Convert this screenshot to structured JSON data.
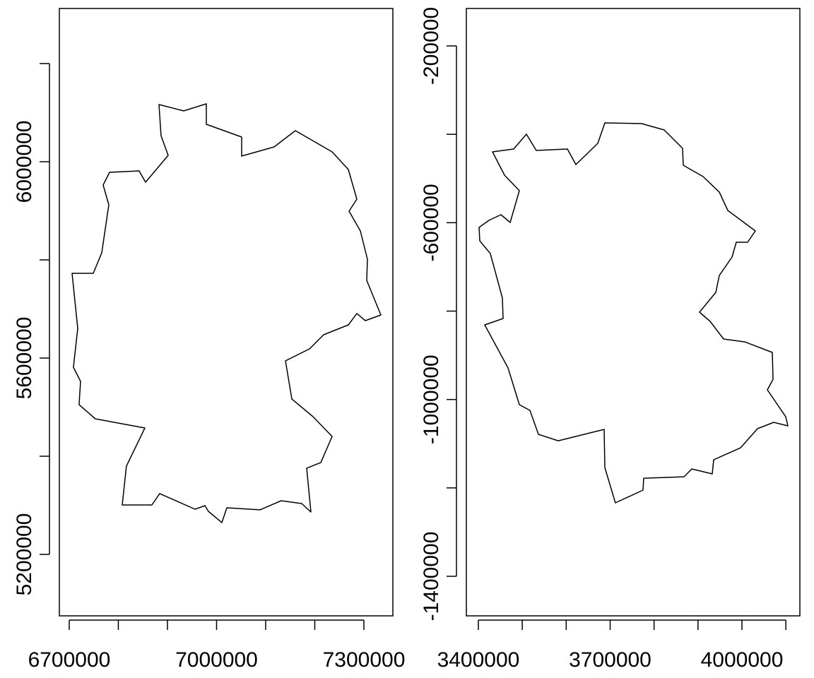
{
  "chart_data": [
    {
      "type": "polygon",
      "x": [
        6882700,
        6933100,
        6979100,
        6979100,
        7051100,
        7051100,
        7117300,
        7160400,
        7235200,
        7268300,
        7285600,
        7269800,
        7292800,
        7307200,
        7305700,
        7334500,
        7302900,
        7285600,
        7268300,
        7218000,
        7189200,
        7140300,
        7153200,
        7196400,
        7235200,
        7212200,
        7183400,
        7192100,
        7173400,
        7131600,
        7088500,
        7020900,
        7010800,
        6983400,
        6976300,
        6956100,
        6884200,
        6868300,
        6807900,
        6816500,
        6854000,
        6753200,
        6720100,
        6723000,
        6708600,
        6717300,
        6705800,
        6748900,
        6766200,
        6780600,
        6769100,
        6782000,
        6842400,
        6855400,
        6901400,
        6887000
      ],
      "values": [
        6116500,
        6103600,
        6118000,
        6076300,
        6050400,
        6011500,
        6030200,
        6063300,
        6020100,
        5984200,
        5923700,
        5899300,
        5859000,
        5801400,
        5758300,
        5687800,
        5676300,
        5690700,
        5667600,
        5647500,
        5618700,
        5594300,
        5516600,
        5480600,
        5440300,
        5387100,
        5375600,
        5286400,
        5303600,
        5309400,
        5290700,
        5295000,
        5264800,
        5287800,
        5299300,
        5292100,
        5323800,
        5300700,
        5300700,
        5379900,
        5457600,
        5476300,
        5505100,
        5552500,
        5581300,
        5660400,
        5772700,
        5772700,
        5814400,
        5912200,
        5952500,
        5978400,
        5981300,
        5958300,
        6012900,
        6053200
      ],
      "xlim": [
        6679900,
        7359000
      ],
      "ylim": [
        5074800,
        6312200
      ],
      "xticks": [
        6700000,
        {
          "value": 6800000,
          "label": null
        },
        {
          "value": 6900000,
          "label": null
        },
        7000000,
        {
          "value": 7100000,
          "label": null
        },
        {
          "value": 7200000,
          "label": null
        },
        7300000
      ],
      "yticks": [
        5200000,
        {
          "value": 5400000,
          "label": null
        },
        5600000,
        {
          "value": 5800000,
          "label": null
        },
        6000000,
        {
          "value": 6200000,
          "label": null
        }
      ],
      "color": "#000000"
    },
    {
      "type": "polygon",
      "x": [
        3687900,
        3771600,
        3823000,
        3864900,
        3866500,
        3911500,
        3948500,
        3967800,
        4030500,
        4012800,
        3987100,
        3977500,
        3948500,
        3940500,
        3903500,
        3927600,
        3958200,
        4006400,
        4069100,
        4070700,
        4057900,
        4099700,
        4104500,
        4072400,
        4035400,
        3996800,
        3935600,
        3932400,
        3885800,
        3868100,
        3776400,
        3774800,
        3712000,
        3687900,
        3686300,
        3581800,
        3536700,
        3517400,
        3493300,
        3467600,
        3414500,
        3456300,
        3454700,
        3427300,
        3403200,
        3401600,
        3424100,
        3451500,
        3472400,
        3493300,
        3459500,
        3432200,
        3480400,
        3509400,
        3531900,
        3602700,
        3622000,
        3671800
      ],
      "values": [
        -374200,
        -375800,
        -390200,
        -431700,
        -470100,
        -495600,
        -530800,
        -572300,
        -618700,
        -644200,
        -644200,
        -677800,
        -719400,
        -757700,
        -802400,
        -823200,
        -863200,
        -869600,
        -893500,
        -954300,
        -978200,
        -1039000,
        -1059700,
        -1051700,
        -1066100,
        -1109300,
        -1136400,
        -1168400,
        -1157200,
        -1174800,
        -1178000,
        -1205100,
        -1233900,
        -1154000,
        -1067700,
        -1093300,
        -1078900,
        -1024600,
        -1011800,
        -928700,
        -831200,
        -816800,
        -770500,
        -669800,
        -641000,
        -610700,
        -594700,
        -581900,
        -599500,
        -527600,
        -492400,
        -439700,
        -433300,
        -399800,
        -436500,
        -433300,
        -468500,
        -420500
      ],
      "xlim": [
        3372700,
        4131900
      ],
      "ylim": [
        -1489500,
        -115300
      ],
      "xticks": [
        3400000,
        {
          "value": 3500000,
          "label": null
        },
        {
          "value": 3600000,
          "label": null
        },
        3700000,
        {
          "value": 3800000,
          "label": null
        },
        {
          "value": 3900000,
          "label": null
        },
        4000000,
        {
          "value": 4100000,
          "label": null
        }
      ],
      "yticks": [
        -1400000,
        {
          "value": -1200000,
          "label": null
        },
        -1000000,
        {
          "value": -800000,
          "label": null
        },
        -600000,
        {
          "value": -400000,
          "label": null
        },
        -200000
      ],
      "color": "#000000"
    }
  ]
}
